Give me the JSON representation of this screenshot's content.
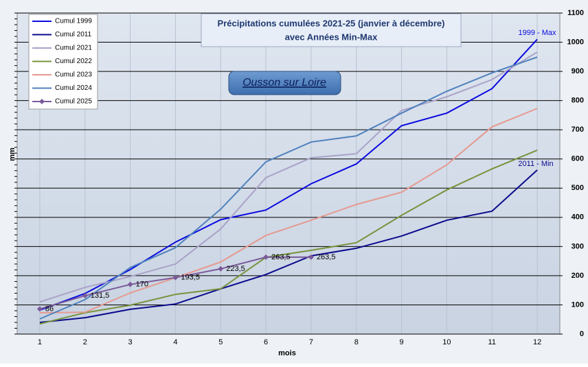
{
  "chart_data": {
    "type": "line",
    "title": "Précipitations cumulées 2021-25  (janvier à décembre)",
    "subtitle": "avec Années Min-Max",
    "location": "Ousson sur Loire",
    "y_axis_label": "mm",
    "x_axis_label": "mois",
    "annotations": [
      "1999 - Max",
      "2011 - Min"
    ],
    "categories": [
      "1",
      "2",
      "3",
      "4",
      "5",
      "6",
      "7",
      "8",
      "9",
      "10",
      "11",
      "12"
    ],
    "ylim": [
      0,
      1100
    ],
    "yticks": [
      0,
      100,
      200,
      300,
      400,
      500,
      600,
      700,
      800,
      900,
      1000,
      1100
    ],
    "grid": true,
    "legend": "upper left",
    "series": [
      {
        "name": "Cumul 1999",
        "color": "#0a0ae0",
        "values": [
          82,
          139,
          221,
          315,
          392,
          425,
          515,
          583,
          714,
          757,
          841,
          1010
        ]
      },
      {
        "name": "Cumul 2011",
        "color": "#0a0a8c",
        "values": [
          40,
          56,
          85,
          103,
          155,
          204,
          268,
          294,
          336,
          390,
          421,
          562
        ]
      },
      {
        "name": "Cumul 2021",
        "color": "#aaa2c8",
        "values": [
          110,
          160,
          197,
          240,
          360,
          536,
          604,
          618,
          766,
          813,
          872,
          966
        ]
      },
      {
        "name": "Cumul 2022",
        "color": "#77933c",
        "values": [
          35,
          73,
          99,
          136,
          155,
          263,
          287,
          313,
          407,
          494,
          566,
          630
        ]
      },
      {
        "name": "Cumul 2023",
        "color": "#e6998f",
        "values": [
          73,
          75,
          141,
          193,
          247,
          338,
          390,
          444,
          486,
          580,
          710,
          773
        ]
      },
      {
        "name": "Cumul 2024",
        "color": "#4f81bd",
        "values": [
          52,
          118,
          228,
          296,
          428,
          590,
          658,
          679,
          757,
          832,
          895,
          949
        ]
      },
      {
        "name": "Cumul 2025",
        "color": "#7a5a9a",
        "marker": "diamond",
        "values": [
          86,
          131.5,
          170,
          193.5,
          223.5,
          263.5,
          263.5,
          null,
          null,
          null,
          null,
          null
        ],
        "value_labels": [
          "86",
          "131,5",
          "170",
          "193,5",
          "223,5",
          "263,5",
          "263,5",
          null,
          null,
          null,
          null,
          null
        ]
      }
    ]
  }
}
